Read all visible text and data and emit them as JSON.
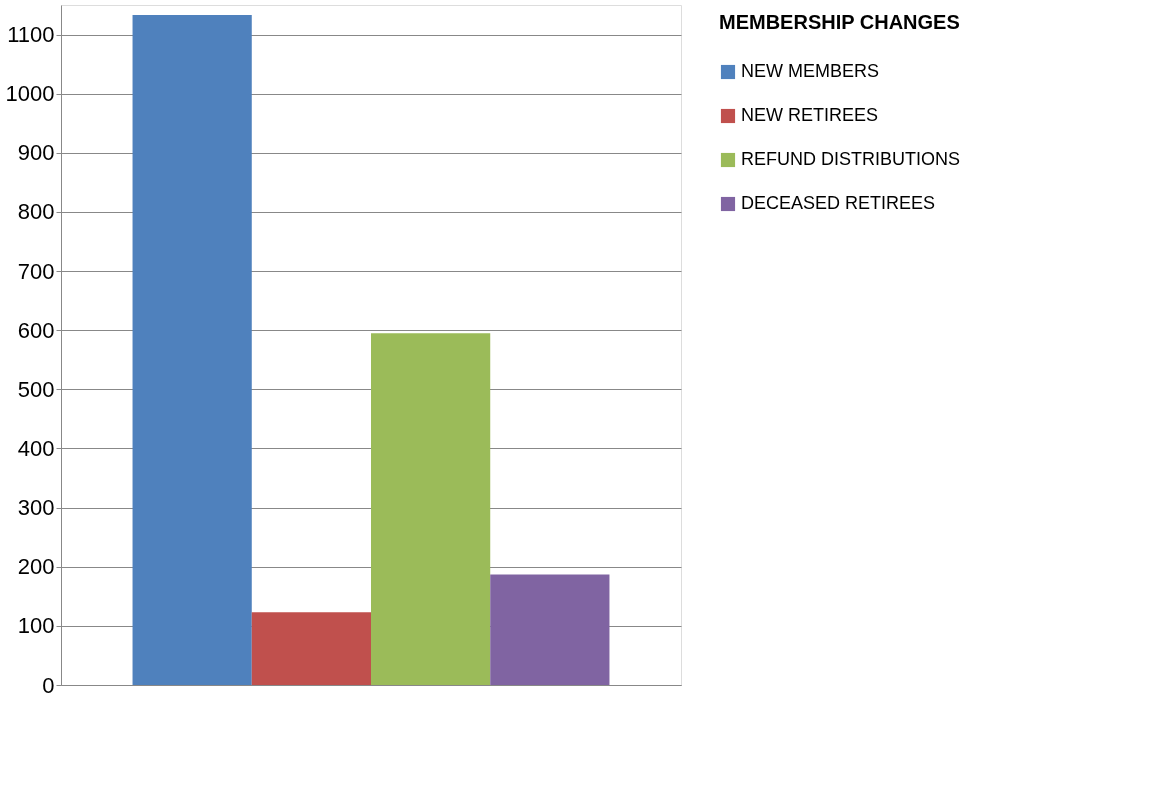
{
  "chart_data": {
    "type": "bar",
    "categories": [
      null
    ],
    "series": [
      {
        "name": "NEW MEMBERS",
        "color": "#4f81bd",
        "values": [
          1133
        ]
      },
      {
        "name": "NEW RETIREES",
        "color": "#c0504d",
        "values": [
          123
        ]
      },
      {
        "name": "REFUND DISTRIBUTIONS",
        "color": "#9bbb59",
        "values": [
          595
        ]
      },
      {
        "name": "DECEASED RETIREES",
        "color": "#8064a2",
        "values": [
          187
        ]
      }
    ],
    "legend_title": "MEMBERSHIP CHANGES",
    "legend": "right",
    "ylim": [
      0,
      1150
    ],
    "yticks": [
      0,
      100,
      200,
      300,
      400,
      500,
      600,
      700,
      800,
      900,
      1000,
      1100
    ],
    "grid": "y",
    "tick_labels": "y"
  }
}
